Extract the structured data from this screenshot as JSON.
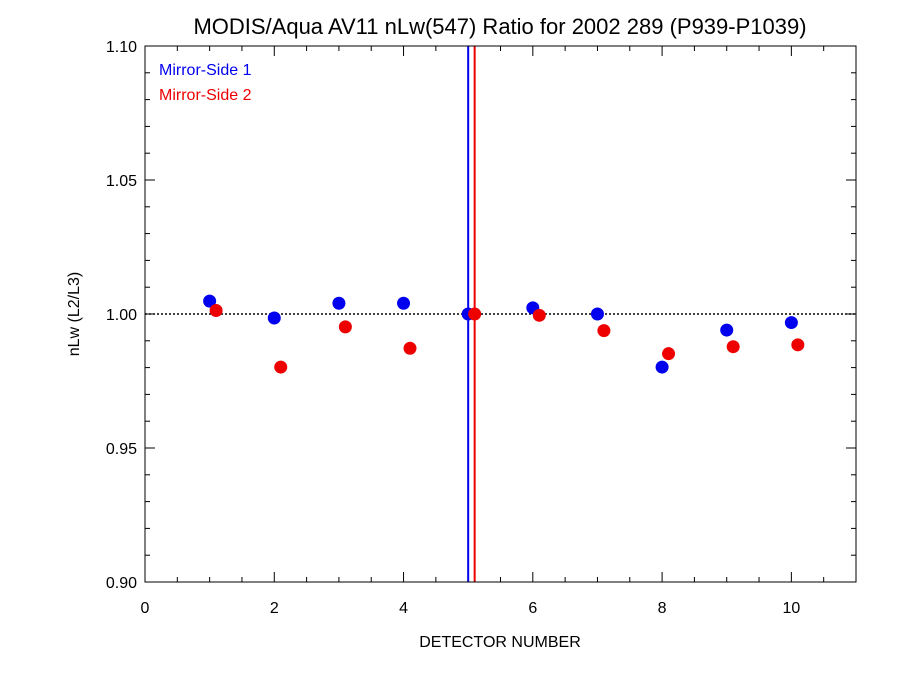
{
  "chart_data": {
    "type": "scatter",
    "title": "MODIS/Aqua AV11 nLw(547) Ratio for 2002 289 (P939-P1039)",
    "xlabel": "DETECTOR NUMBER",
    "ylabel": "nLw (L2/L3)",
    "xlim": [
      0,
      11
    ],
    "ylim": [
      0.9,
      1.1
    ],
    "x_ticks": [
      0,
      2,
      4,
      6,
      8,
      10
    ],
    "y_ticks": [
      0.9,
      0.95,
      1.0,
      1.05,
      1.1
    ],
    "x_tick_labels": [
      "0",
      "2",
      "4",
      "6",
      "8",
      "10"
    ],
    "y_tick_labels": [
      "0.90",
      "0.95",
      "1.00",
      "1.05",
      "1.10"
    ],
    "x_minor_step": 0.5,
    "y_minor_step": 0.01,
    "reference_line": 1.0,
    "grid": false,
    "legend_position": "top-left",
    "series": [
      {
        "name": "Mirror-Side 1",
        "color": "#0000ee",
        "x": [
          1,
          2,
          3,
          4,
          5,
          6,
          7,
          8,
          9,
          10
        ],
        "y": [
          1.0048,
          0.9985,
          1.004,
          1.004,
          1.0,
          1.0023,
          1.0,
          0.9802,
          0.994,
          0.9968
        ],
        "vline": 5.0
      },
      {
        "name": "Mirror-Side 2",
        "color": "#ee0000",
        "x": [
          1.1,
          2.1,
          3.1,
          4.1,
          5.1,
          6.1,
          7.1,
          8.1,
          9.1,
          10.1
        ],
        "y": [
          1.0013,
          0.9802,
          0.9952,
          0.9872,
          1.0,
          0.9995,
          0.9938,
          0.9852,
          0.9878,
          0.9885
        ],
        "vline": 5.1
      }
    ]
  }
}
